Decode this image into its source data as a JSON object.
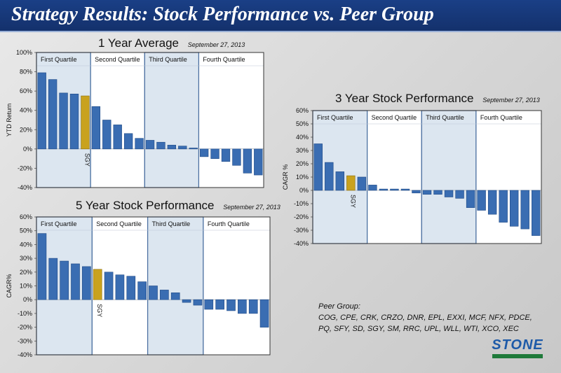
{
  "header": {
    "title": "Strategy Results:  Stock Performance vs. Peer Group"
  },
  "colors": {
    "bar": "#3a6db2",
    "highlight": "#c9a21e",
    "quartile_shade": "#dce6f0",
    "banner": "#1a3f86"
  },
  "chart_data": [
    {
      "type": "bar",
      "title": "1 Year Average",
      "date": "September 27, 2013",
      "ylabel": "YTD Return",
      "ylim": [
        -40,
        100
      ],
      "yticks": [
        "100%",
        "80%",
        "60%",
        "40%",
        "20%",
        "0%",
        "-20%",
        "-40%"
      ],
      "quartiles": [
        "First Quartile",
        "Second Quartile",
        "Third Quartile",
        "Fourth Quartile"
      ],
      "values": [
        79,
        72,
        58,
        57,
        55,
        44,
        30,
        25,
        16,
        11,
        9,
        7,
        4,
        3,
        1,
        -8,
        -10,
        -13,
        -17,
        -25,
        -27
      ],
      "highlight_index": 4,
      "highlight_label": "SGY",
      "quartile_bars": [
        5,
        5,
        5,
        6
      ]
    },
    {
      "type": "bar",
      "title": "3 Year Stock Performance",
      "date": "September 27, 2013",
      "ylabel": "CAGR %",
      "ylim": [
        -40,
        60
      ],
      "yticks": [
        "60%",
        "50%",
        "40%",
        "30%",
        "20%",
        "10%",
        "0%",
        "-10%",
        "-20%",
        "-30%",
        "-40%"
      ],
      "quartiles": [
        "First Quartile",
        "Second Quartile",
        "Third Quartile",
        "Fourth Quartile"
      ],
      "values": [
        35,
        21,
        14,
        11,
        10,
        4,
        1,
        1,
        1,
        -2,
        -3,
        -3,
        -5,
        -6,
        -13,
        -15,
        -18,
        -24,
        -27,
        -29,
        -34
      ],
      "highlight_index": 3,
      "highlight_label": "SGY",
      "quartile_bars": [
        5,
        5,
        5,
        6
      ]
    },
    {
      "type": "bar",
      "title": "5 Year Stock Performance",
      "date": "September 27, 2013",
      "ylabel": "CAGR%",
      "ylim": [
        -40,
        60
      ],
      "yticks": [
        "60%",
        "50%",
        "40%",
        "30%",
        "20%",
        "10%",
        "0%",
        "-10%",
        "-20%",
        "-30%",
        "-40%"
      ],
      "quartiles": [
        "First Quartile",
        "Second Quartile",
        "Third Quartile",
        "Fourth Quartile"
      ],
      "values": [
        48,
        30,
        28,
        26,
        24,
        22,
        20,
        18,
        17,
        13,
        10,
        7,
        5,
        -2,
        -4,
        -7,
        -7,
        -8,
        -10,
        -10,
        -20
      ],
      "highlight_index": 5,
      "highlight_label": "SGY",
      "quartile_bars": [
        5,
        5,
        5,
        6
      ]
    }
  ],
  "peer_group": {
    "heading": "Peer Group:",
    "line1": "COG, CPE, CRK, CRZO, DNR, EPL, EXXI, MCF, NFX, PDCE,",
    "line2": "PQ, SFY, SD, SGY, SM, RRC, UPL, WLL, WTI, XCO, XEC"
  },
  "logo": {
    "text": "STONE"
  }
}
